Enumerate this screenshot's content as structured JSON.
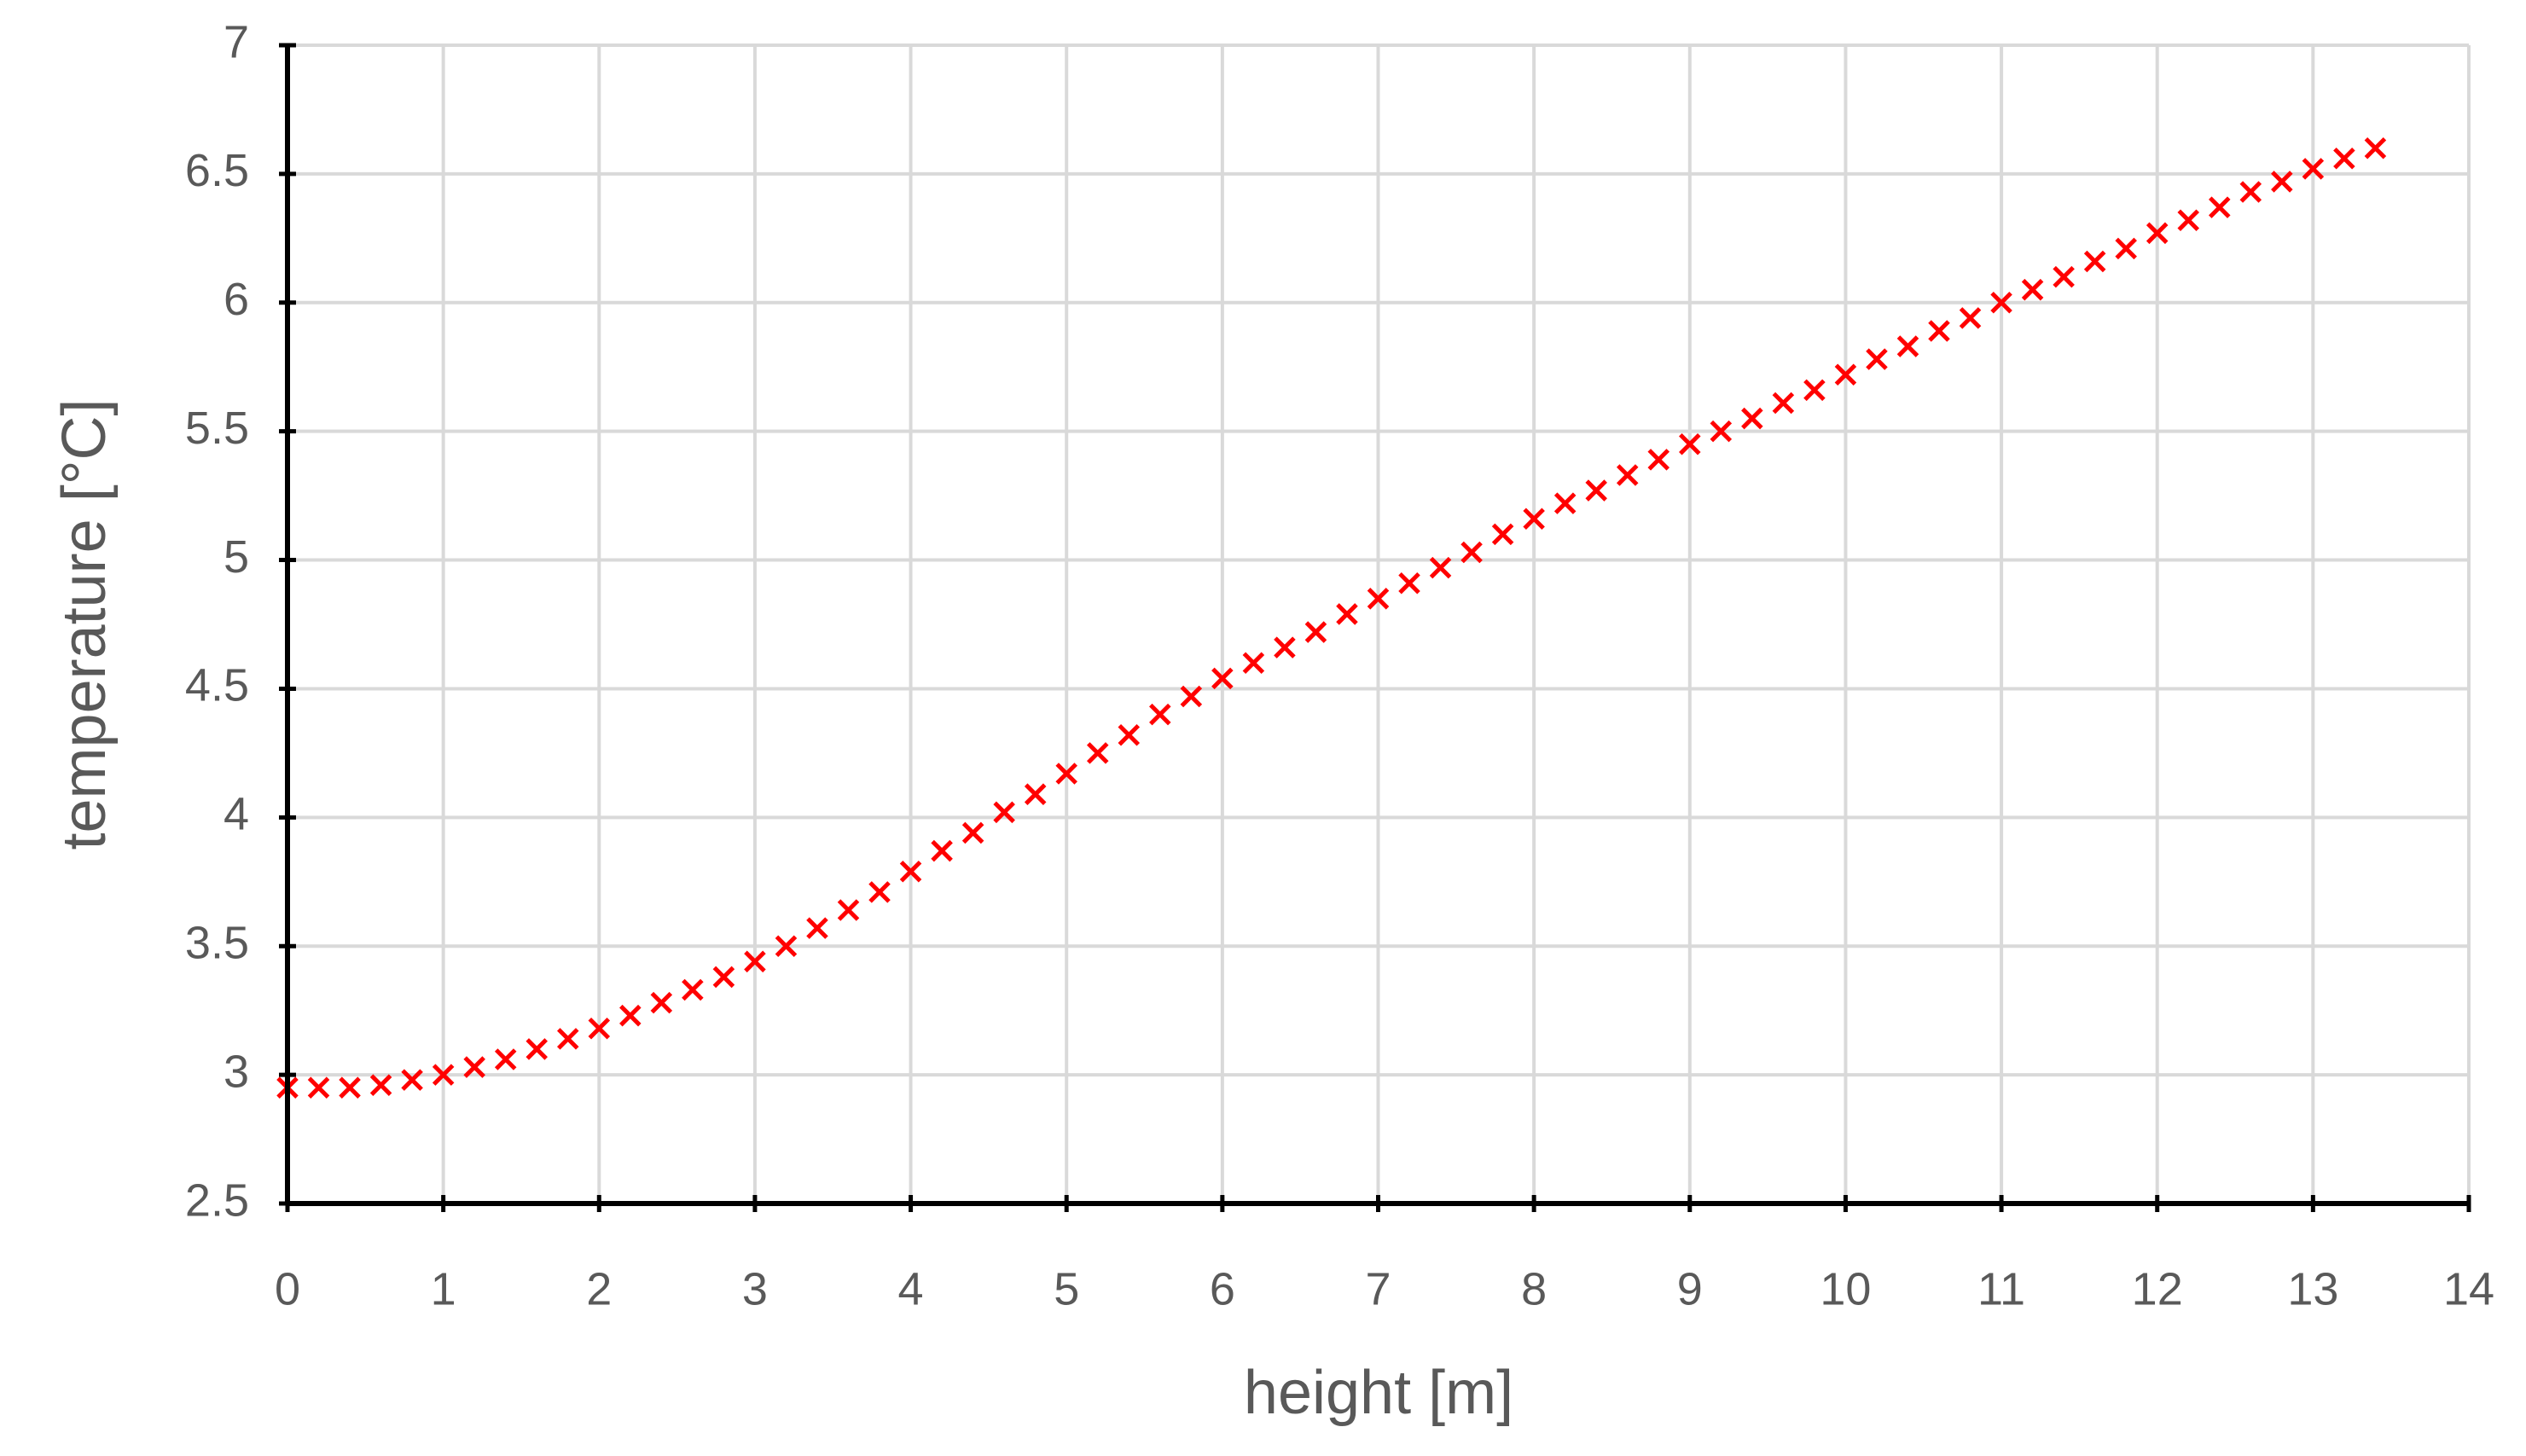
{
  "chart_data": {
    "type": "scatter",
    "x_label": "height [m]",
    "y_label": "temperature [°C]",
    "series": [
      {
        "color": "#ff0000",
        "marker": "x",
        "x": [
          0,
          0.2,
          0.4,
          0.6,
          0.8,
          1.0,
          1.2,
          1.4,
          1.6,
          1.8,
          2.0,
          2.2,
          2.4,
          2.6,
          2.8,
          3.0,
          3.2,
          3.4,
          3.6,
          3.8,
          4.0,
          4.2,
          4.4,
          4.6,
          4.8,
          5.0,
          5.2,
          5.4,
          5.6,
          5.8,
          6.0,
          6.2,
          6.4,
          6.6,
          6.8,
          7.0,
          7.2,
          7.4,
          7.6,
          7.8,
          8.0,
          8.2,
          8.4,
          8.6,
          8.8,
          9.0,
          9.2,
          9.4,
          9.6,
          9.8,
          10.0,
          10.2,
          10.4,
          10.6,
          10.8,
          11.0,
          11.2,
          11.4,
          11.6,
          11.8,
          12.0,
          12.2,
          12.4,
          12.6,
          12.8,
          13.0,
          13.2,
          13.4
        ],
        "values": [
          2.95,
          2.95,
          2.95,
          2.96,
          2.98,
          3.0,
          3.03,
          3.06,
          3.1,
          3.14,
          3.18,
          3.23,
          3.28,
          3.33,
          3.38,
          3.44,
          3.5,
          3.57,
          3.64,
          3.71,
          3.79,
          3.87,
          3.94,
          4.02,
          4.09,
          4.17,
          4.25,
          4.32,
          4.4,
          4.47,
          4.54,
          4.6,
          4.66,
          4.72,
          4.79,
          4.85,
          4.91,
          4.97,
          5.03,
          5.1,
          5.16,
          5.22,
          5.27,
          5.33,
          5.39,
          5.45,
          5.5,
          5.55,
          5.61,
          5.66,
          5.72,
          5.78,
          5.83,
          5.89,
          5.94,
          6.0,
          6.05,
          6.1,
          6.16,
          6.21,
          6.27,
          6.32,
          6.37,
          6.43,
          6.47,
          6.52,
          6.56,
          6.6
        ]
      }
    ],
    "xlim": [
      0,
      14
    ],
    "xticks": [
      0,
      1,
      2,
      3,
      4,
      5,
      6,
      7,
      8,
      9,
      10,
      11,
      12,
      13,
      14
    ],
    "ylim": [
      2.5,
      7
    ],
    "yticks": [
      2.5,
      3,
      3.5,
      4,
      4.5,
      5,
      5.5,
      6,
      6.5,
      7
    ],
    "grid": true
  }
}
